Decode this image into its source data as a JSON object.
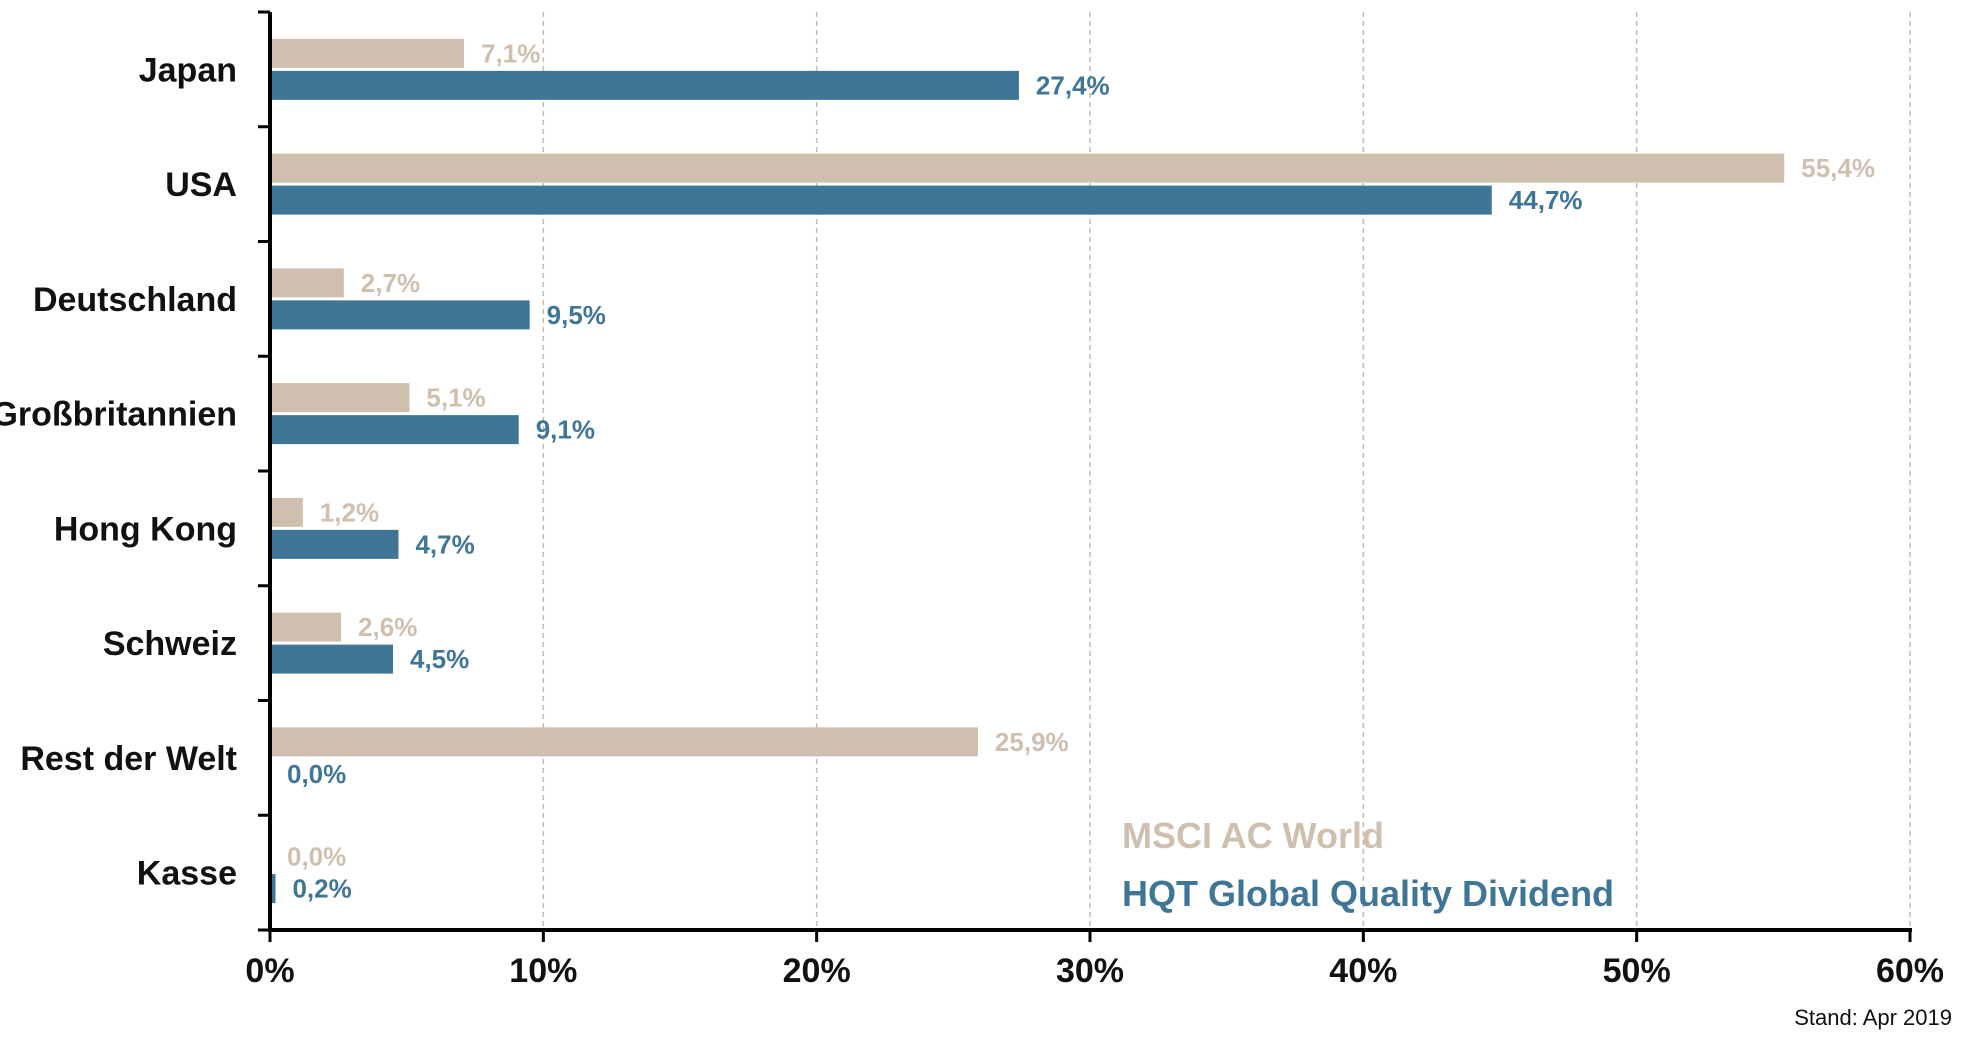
{
  "chart_data": {
    "type": "bar",
    "orientation": "horizontal",
    "categories": [
      "Japan",
      "USA",
      "Deutschland",
      "Großbritannien",
      "Hong Kong",
      "Schweiz",
      "Rest der Welt",
      "Kasse"
    ],
    "series": [
      {
        "name": "MSCI AC World",
        "color": "#cfbfae",
        "values": [
          7.1,
          55.4,
          2.7,
          5.1,
          1.2,
          2.6,
          25.9,
          0.0
        ],
        "labels": [
          "7,1%",
          "55,4%",
          "2,7%",
          "5,1%",
          "1,2%",
          "2,6%",
          "25,9%",
          "0,0%"
        ]
      },
      {
        "name": "HQT Global Quality Dividend",
        "color": "#3f7698",
        "values": [
          27.4,
          44.7,
          9.5,
          9.1,
          4.7,
          4.5,
          0.0,
          0.2
        ],
        "labels": [
          "27,4%",
          "44,7%",
          "9,5%",
          "9,1%",
          "4,7%",
          "4,5%",
          "0,0%",
          "0,2%"
        ]
      }
    ],
    "xlim": [
      0,
      60
    ],
    "x_ticks": [
      "0%",
      "10%",
      "20%",
      "30%",
      "40%",
      "50%",
      "60%"
    ],
    "grid": "vertical dashed",
    "legend_position": "bottom-right inside"
  },
  "footnote": "Stand: Apr 2019"
}
